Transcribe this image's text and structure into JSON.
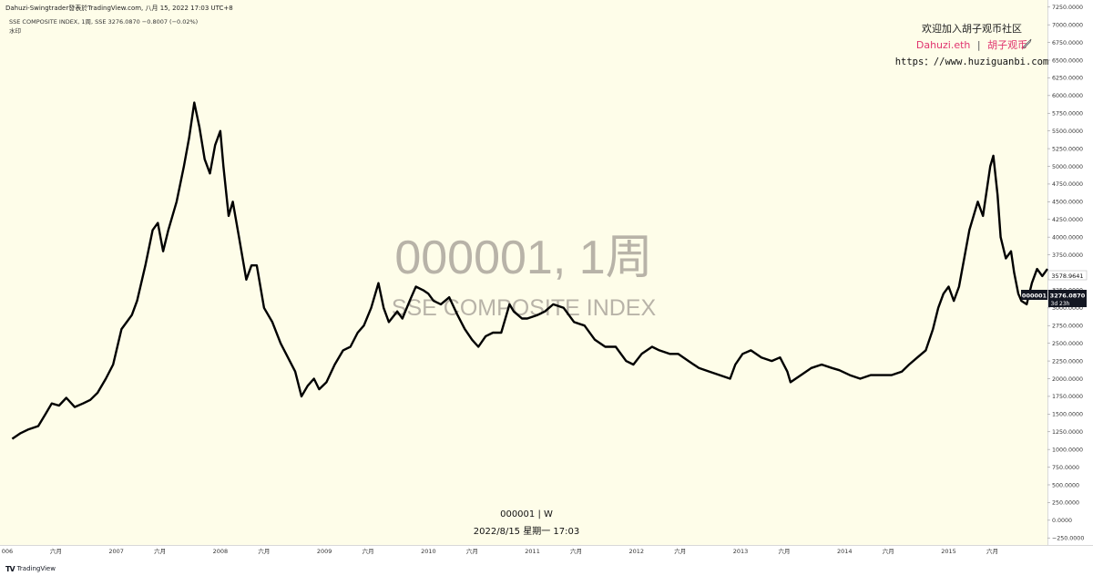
{
  "header": {
    "publish_line": "Dahuzi-Swingtrader發表於TradingView.com, 八月 15, 2022 17:03 UTC+8",
    "symbol_line": "SSE COMPOSITE INDEX, 1周, SSE  3276.0870  −0.8007 (−0.02%)",
    "sub_line": "水印"
  },
  "watermark": {
    "line1": "000001, 1周",
    "line2": "SSE COMPOSITE INDEX"
  },
  "promo": {
    "line1": "欢迎加入胡子观币社区",
    "line2_name": "Dahuzi.eth",
    "line2_sep": "|",
    "line2_group": "胡子观币",
    "line3": "https：//www.huziguanbi.com"
  },
  "bottom_caption": {
    "symbol": "000001 | W",
    "datetime": "2022/8/15 星期一 17:03"
  },
  "footer": {
    "brand": "TradingView"
  },
  "price_tags": {
    "upper": "3578.9641",
    "current_symbol": "000001",
    "current_price": "3276.0870",
    "countdown": "3d 23h"
  },
  "colors": {
    "plot_background": "#fefde9",
    "line": "#000000",
    "watermark": "#b8b3a8",
    "promo_pink": "#e0336e",
    "tag_dark": "#131722"
  },
  "chart_data": {
    "type": "line",
    "title": "SSE COMPOSITE INDEX",
    "symbol": "000001",
    "interval": "1周",
    "x_tick_labels": [
      "006",
      "六月",
      "2007",
      "六月",
      "2008",
      "六月",
      "2009",
      "六月",
      "2010",
      "六月",
      "2011",
      "六月",
      "2012",
      "六月",
      "2013",
      "六月",
      "2014",
      "六月",
      "2015",
      "六月"
    ],
    "y_tick_labels": [
      "7250.0000",
      "7000.0000",
      "6750.0000",
      "6500.0000",
      "6250.0000",
      "6000.0000",
      "5750.0000",
      "5500.0000",
      "5250.0000",
      "5000.0000",
      "4750.0000",
      "4500.0000",
      "4250.0000",
      "4000.0000",
      "3750.0000",
      "3500.0000",
      "3250.0000",
      "3000.0000",
      "2750.0000",
      "2500.0000",
      "2250.0000",
      "2000.0000",
      "1750.0000",
      "1500.0000",
      "1250.0000",
      "1000.0000",
      "750.0000",
      "500.0000",
      "250.0000",
      "0.0000",
      "−250.0000"
    ],
    "ylim": [
      -350,
      7350
    ],
    "xlim": [
      2005.9,
      2015.95
    ],
    "grid": false,
    "series": [
      {
        "points": [
          [
            2006.0,
            1150
          ],
          [
            2006.08,
            1230
          ],
          [
            2006.15,
            1280
          ],
          [
            2006.25,
            1330
          ],
          [
            2006.32,
            1500
          ],
          [
            2006.38,
            1650
          ],
          [
            2006.45,
            1620
          ],
          [
            2006.52,
            1730
          ],
          [
            2006.6,
            1600
          ],
          [
            2006.68,
            1650
          ],
          [
            2006.75,
            1700
          ],
          [
            2006.82,
            1800
          ],
          [
            2006.9,
            2000
          ],
          [
            2006.97,
            2200
          ],
          [
            2007.05,
            2700
          ],
          [
            2007.1,
            2800
          ],
          [
            2007.15,
            2900
          ],
          [
            2007.2,
            3100
          ],
          [
            2007.28,
            3600
          ],
          [
            2007.35,
            4100
          ],
          [
            2007.4,
            4200
          ],
          [
            2007.45,
            3800
          ],
          [
            2007.5,
            4100
          ],
          [
            2007.58,
            4500
          ],
          [
            2007.65,
            5000
          ],
          [
            2007.7,
            5400
          ],
          [
            2007.75,
            5900
          ],
          [
            2007.8,
            5550
          ],
          [
            2007.85,
            5100
          ],
          [
            2007.9,
            4900
          ],
          [
            2007.95,
            5300
          ],
          [
            2008.0,
            5500
          ],
          [
            2008.03,
            5000
          ],
          [
            2008.08,
            4300
          ],
          [
            2008.12,
            4500
          ],
          [
            2008.18,
            4000
          ],
          [
            2008.25,
            3400
          ],
          [
            2008.3,
            3600
          ],
          [
            2008.35,
            3600
          ],
          [
            2008.42,
            3000
          ],
          [
            2008.5,
            2800
          ],
          [
            2008.58,
            2500
          ],
          [
            2008.65,
            2300
          ],
          [
            2008.72,
            2100
          ],
          [
            2008.78,
            1750
          ],
          [
            2008.84,
            1900
          ],
          [
            2008.9,
            2000
          ],
          [
            2008.95,
            1850
          ],
          [
            2009.02,
            1950
          ],
          [
            2009.1,
            2200
          ],
          [
            2009.18,
            2400
          ],
          [
            2009.25,
            2450
          ],
          [
            2009.32,
            2650
          ],
          [
            2009.38,
            2750
          ],
          [
            2009.45,
            3000
          ],
          [
            2009.52,
            3350
          ],
          [
            2009.57,
            3000
          ],
          [
            2009.62,
            2800
          ],
          [
            2009.7,
            2950
          ],
          [
            2009.75,
            2850
          ],
          [
            2009.82,
            3100
          ],
          [
            2009.88,
            3300
          ],
          [
            2009.95,
            3250
          ],
          [
            2010.0,
            3200
          ],
          [
            2010.05,
            3100
          ],
          [
            2010.12,
            3050
          ],
          [
            2010.2,
            3150
          ],
          [
            2010.28,
            2900
          ],
          [
            2010.35,
            2700
          ],
          [
            2010.42,
            2550
          ],
          [
            2010.48,
            2450
          ],
          [
            2010.55,
            2600
          ],
          [
            2010.62,
            2650
          ],
          [
            2010.7,
            2650
          ],
          [
            2010.78,
            3050
          ],
          [
            2010.82,
            2950
          ],
          [
            2010.9,
            2850
          ],
          [
            2010.95,
            2850
          ],
          [
            2011.05,
            2900
          ],
          [
            2011.12,
            2950
          ],
          [
            2011.2,
            3050
          ],
          [
            2011.3,
            3000
          ],
          [
            2011.4,
            2800
          ],
          [
            2011.5,
            2750
          ],
          [
            2011.6,
            2550
          ],
          [
            2011.7,
            2450
          ],
          [
            2011.8,
            2450
          ],
          [
            2011.9,
            2250
          ],
          [
            2011.97,
            2200
          ],
          [
            2012.05,
            2350
          ],
          [
            2012.15,
            2450
          ],
          [
            2012.22,
            2400
          ],
          [
            2012.32,
            2350
          ],
          [
            2012.4,
            2350
          ],
          [
            2012.5,
            2250
          ],
          [
            2012.6,
            2150
          ],
          [
            2012.7,
            2100
          ],
          [
            2012.8,
            2050
          ],
          [
            2012.9,
            2000
          ],
          [
            2012.95,
            2200
          ],
          [
            2013.02,
            2350
          ],
          [
            2013.1,
            2400
          ],
          [
            2013.2,
            2300
          ],
          [
            2013.3,
            2250
          ],
          [
            2013.38,
            2300
          ],
          [
            2013.45,
            2100
          ],
          [
            2013.48,
            1950
          ],
          [
            2013.58,
            2050
          ],
          [
            2013.68,
            2150
          ],
          [
            2013.78,
            2200
          ],
          [
            2013.88,
            2150
          ],
          [
            2013.95,
            2120
          ],
          [
            2014.05,
            2050
          ],
          [
            2014.15,
            2000
          ],
          [
            2014.25,
            2050
          ],
          [
            2014.35,
            2050
          ],
          [
            2014.45,
            2050
          ],
          [
            2014.55,
            2100
          ],
          [
            2014.62,
            2200
          ],
          [
            2014.7,
            2300
          ],
          [
            2014.78,
            2400
          ],
          [
            2014.85,
            2700
          ],
          [
            2014.9,
            3000
          ],
          [
            2014.95,
            3200
          ],
          [
            2015.0,
            3300
          ],
          [
            2015.05,
            3100
          ],
          [
            2015.1,
            3300
          ],
          [
            2015.15,
            3700
          ],
          [
            2015.2,
            4100
          ],
          [
            2015.28,
            4500
          ],
          [
            2015.33,
            4300
          ],
          [
            2015.4,
            5000
          ],
          [
            2015.43,
            5150
          ],
          [
            2015.47,
            4600
          ],
          [
            2015.5,
            4000
          ],
          [
            2015.55,
            3700
          ],
          [
            2015.6,
            3800
          ],
          [
            2015.63,
            3500
          ],
          [
            2015.67,
            3200
          ],
          [
            2015.7,
            3100
          ],
          [
            2015.75,
            3050
          ],
          [
            2015.8,
            3350
          ],
          [
            2015.85,
            3550
          ],
          [
            2015.9,
            3450
          ],
          [
            2015.95,
            3550
          ]
        ]
      }
    ]
  }
}
